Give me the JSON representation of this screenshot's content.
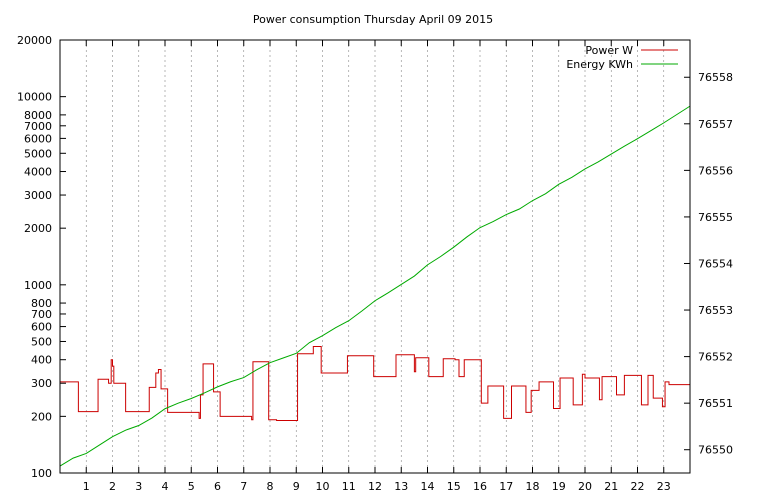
{
  "chart_data": {
    "type": "line",
    "title": "Power consumption Thursday April 09 2015",
    "xlabel": "",
    "ylabel": "",
    "xlim": [
      0,
      24
    ],
    "x_ticks": [
      1,
      2,
      3,
      4,
      5,
      6,
      7,
      8,
      9,
      10,
      11,
      12,
      13,
      14,
      15,
      16,
      17,
      18,
      19,
      20,
      21,
      22,
      23
    ],
    "y_left": {
      "scale": "log",
      "lim": [
        100,
        20000
      ],
      "ticks": [
        100,
        200,
        300,
        400,
        500,
        600,
        700,
        800,
        1000,
        2000,
        3000,
        4000,
        5000,
        6000,
        7000,
        8000,
        10000,
        20000
      ]
    },
    "y_right": {
      "scale": "linear",
      "lim": [
        76549.5,
        76558.8
      ],
      "ticks": [
        76550,
        76551,
        76552,
        76553,
        76554,
        76555,
        76556,
        76557,
        76558
      ]
    },
    "grid": true,
    "legend": "top-right",
    "series": [
      {
        "name": "Power W",
        "axis": "left",
        "color": "#cc0000",
        "points": [
          [
            0,
            305
          ],
          [
            0.7,
            305
          ],
          [
            0.7,
            212
          ],
          [
            1.45,
            212
          ],
          [
            1.45,
            315
          ],
          [
            1.85,
            315
          ],
          [
            1.85,
            300
          ],
          [
            1.95,
            300
          ],
          [
            1.95,
            400
          ],
          [
            2.0,
            400
          ],
          [
            2.0,
            370
          ],
          [
            2.05,
            370
          ],
          [
            2.05,
            300
          ],
          [
            2.5,
            300
          ],
          [
            2.5,
            212
          ],
          [
            3.4,
            212
          ],
          [
            3.4,
            285
          ],
          [
            3.65,
            285
          ],
          [
            3.65,
            340
          ],
          [
            3.75,
            340
          ],
          [
            3.75,
            355
          ],
          [
            3.85,
            355
          ],
          [
            3.85,
            280
          ],
          [
            4.1,
            280
          ],
          [
            4.1,
            210
          ],
          [
            5.3,
            210
          ],
          [
            5.3,
            195
          ],
          [
            5.35,
            195
          ],
          [
            5.35,
            260
          ],
          [
            5.45,
            260
          ],
          [
            5.45,
            380
          ],
          [
            5.85,
            380
          ],
          [
            5.85,
            270
          ],
          [
            6.1,
            270
          ],
          [
            6.1,
            200
          ],
          [
            7.3,
            200
          ],
          [
            7.3,
            192
          ],
          [
            7.35,
            192
          ],
          [
            7.35,
            390
          ],
          [
            7.95,
            390
          ],
          [
            7.95,
            192
          ],
          [
            8.25,
            192
          ],
          [
            8.25,
            190
          ],
          [
            9.05,
            190
          ],
          [
            9.05,
            430
          ],
          [
            9.65,
            430
          ],
          [
            9.65,
            470
          ],
          [
            9.95,
            470
          ],
          [
            9.95,
            340
          ],
          [
            10.95,
            340
          ],
          [
            10.95,
            420
          ],
          [
            11.95,
            420
          ],
          [
            11.95,
            325
          ],
          [
            12.8,
            325
          ],
          [
            12.8,
            425
          ],
          [
            13.5,
            425
          ],
          [
            13.5,
            345
          ],
          [
            13.55,
            345
          ],
          [
            13.55,
            410
          ],
          [
            14.05,
            410
          ],
          [
            14.05,
            325
          ],
          [
            14.6,
            325
          ],
          [
            14.6,
            405
          ],
          [
            15.05,
            405
          ],
          [
            15.05,
            400
          ],
          [
            15.2,
            400
          ],
          [
            15.2,
            325
          ],
          [
            15.4,
            325
          ],
          [
            15.4,
            400
          ],
          [
            16.05,
            400
          ],
          [
            16.05,
            235
          ],
          [
            16.3,
            235
          ],
          [
            16.3,
            290
          ],
          [
            16.9,
            290
          ],
          [
            16.9,
            195
          ],
          [
            17.2,
            195
          ],
          [
            17.2,
            290
          ],
          [
            17.75,
            290
          ],
          [
            17.75,
            210
          ],
          [
            17.95,
            210
          ],
          [
            17.95,
            275
          ],
          [
            18.25,
            275
          ],
          [
            18.25,
            305
          ],
          [
            18.8,
            305
          ],
          [
            18.8,
            220
          ],
          [
            19.05,
            220
          ],
          [
            19.05,
            320
          ],
          [
            19.55,
            320
          ],
          [
            19.55,
            230
          ],
          [
            19.9,
            230
          ],
          [
            19.9,
            335
          ],
          [
            20.0,
            335
          ],
          [
            20.0,
            320
          ],
          [
            20.55,
            320
          ],
          [
            20.55,
            245
          ],
          [
            20.65,
            245
          ],
          [
            20.65,
            325
          ],
          [
            21.2,
            325
          ],
          [
            21.2,
            260
          ],
          [
            21.5,
            260
          ],
          [
            21.5,
            330
          ],
          [
            22.15,
            330
          ],
          [
            22.15,
            230
          ],
          [
            22.4,
            230
          ],
          [
            22.4,
            330
          ],
          [
            22.6,
            330
          ],
          [
            22.6,
            250
          ],
          [
            22.95,
            250
          ],
          [
            22.95,
            225
          ],
          [
            23.05,
            225
          ],
          [
            23.05,
            305
          ],
          [
            23.2,
            305
          ],
          [
            23.2,
            295
          ],
          [
            24,
            295
          ]
        ]
      },
      {
        "name": "Energy KWh",
        "axis": "right",
        "color": "#00aa00",
        "points": [
          [
            0,
            76549.65
          ],
          [
            0.5,
            76549.82
          ],
          [
            1.0,
            76549.92
          ],
          [
            1.5,
            76550.1
          ],
          [
            2.0,
            76550.28
          ],
          [
            2.5,
            76550.42
          ],
          [
            3.0,
            76550.52
          ],
          [
            3.5,
            76550.68
          ],
          [
            4.0,
            76550.88
          ],
          [
            4.5,
            76551.0
          ],
          [
            5.0,
            76551.1
          ],
          [
            5.5,
            76551.22
          ],
          [
            6.0,
            76551.35
          ],
          [
            6.5,
            76551.46
          ],
          [
            7.0,
            76551.55
          ],
          [
            7.5,
            76551.72
          ],
          [
            8.0,
            76551.87
          ],
          [
            8.5,
            76551.97
          ],
          [
            9.0,
            76552.07
          ],
          [
            9.5,
            76552.3
          ],
          [
            10.0,
            76552.45
          ],
          [
            10.5,
            76552.62
          ],
          [
            11.0,
            76552.77
          ],
          [
            11.5,
            76552.98
          ],
          [
            12.0,
            76553.2
          ],
          [
            12.5,
            76553.37
          ],
          [
            13.0,
            76553.55
          ],
          [
            13.5,
            76553.73
          ],
          [
            14.0,
            76553.97
          ],
          [
            14.5,
            76554.15
          ],
          [
            15.0,
            76554.35
          ],
          [
            15.5,
            76554.57
          ],
          [
            16.0,
            76554.77
          ],
          [
            16.5,
            76554.9
          ],
          [
            17.0,
            76555.05
          ],
          [
            17.5,
            76555.17
          ],
          [
            18.0,
            76555.35
          ],
          [
            18.5,
            76555.5
          ],
          [
            19.0,
            76555.7
          ],
          [
            19.5,
            76555.85
          ],
          [
            20.0,
            76556.03
          ],
          [
            20.5,
            76556.18
          ],
          [
            21.0,
            76556.35
          ],
          [
            21.5,
            76556.52
          ],
          [
            22.0,
            76556.68
          ],
          [
            22.5,
            76556.85
          ],
          [
            23.0,
            76557.02
          ],
          [
            23.5,
            76557.2
          ],
          [
            24,
            76557.38
          ]
        ]
      }
    ]
  }
}
